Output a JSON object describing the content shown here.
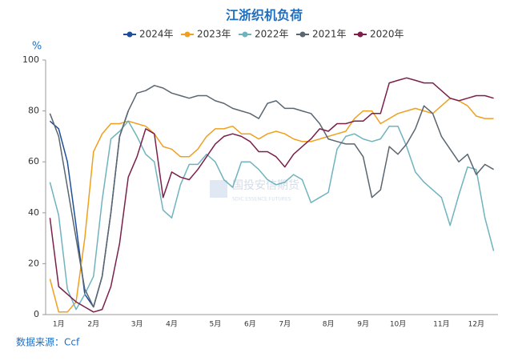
{
  "chart_data": {
    "type": "line",
    "title": "江浙织机负荷",
    "y_unit": "%",
    "source": "数据来源：Ccf",
    "watermark": "国投安信期货",
    "watermark_sub": "SDIC ESSENCE FUTURES",
    "categories": [
      null,
      "1月",
      null,
      null,
      null,
      "2月",
      null,
      null,
      null,
      null,
      "3月",
      null,
      null,
      null,
      "4月",
      null,
      null,
      null,
      null,
      "5月",
      null,
      null,
      null,
      "6月",
      null,
      null,
      null,
      "7月",
      null,
      null,
      null,
      null,
      "8月",
      null,
      null,
      null,
      "9月",
      null,
      null,
      null,
      "10月",
      null,
      null,
      null,
      null,
      "11月",
      null,
      null,
      null,
      "12月",
      null,
      null
    ],
    "ylim": [
      0,
      100
    ],
    "yticks": [
      0,
      20,
      40,
      60,
      80,
      100
    ],
    "grid": false,
    "legend": "top",
    "series": [
      {
        "name": "2024年",
        "color": "#1f4e9c",
        "values": [
          76,
          73,
          60,
          35,
          8,
          3,
          15,
          40,
          70,
          80,
          null,
          null,
          null,
          null,
          null,
          null,
          null,
          null,
          null,
          null,
          null,
          null,
          null,
          null,
          null,
          null,
          null,
          null,
          null,
          null,
          null,
          null,
          null,
          null,
          null,
          null,
          null,
          null,
          null,
          null,
          null,
          null,
          null,
          null,
          null,
          null,
          null,
          null,
          null,
          null,
          null,
          null
        ]
      },
      {
        "name": "2023年",
        "color": "#f0a020",
        "values": [
          14,
          1,
          1,
          5,
          30,
          64,
          71,
          75,
          75,
          76,
          75,
          74,
          71,
          66,
          65,
          62,
          62,
          65,
          70,
          73,
          73,
          74,
          71,
          71,
          69,
          71,
          72,
          71,
          69,
          68,
          68,
          69,
          70,
          71,
          72,
          77,
          80,
          80,
          75,
          77,
          79,
          80,
          81,
          80,
          79,
          82,
          85,
          84,
          82,
          78,
          77,
          77
        ]
      },
      {
        "name": "2022年",
        "color": "#6fb3bf",
        "values": [
          52,
          39,
          10,
          2,
          8,
          15,
          45,
          69,
          72,
          76,
          70,
          63,
          60,
          41,
          38,
          51,
          59,
          59,
          63,
          60,
          53,
          50,
          60,
          60,
          57,
          53,
          51,
          52,
          55,
          53,
          44,
          46,
          48,
          65,
          70,
          71,
          69,
          68,
          69,
          74,
          74,
          66,
          56,
          52,
          49,
          46,
          35,
          47,
          58,
          57,
          38,
          25
        ]
      },
      {
        "name": "2021年",
        "color": "#5a6670",
        "values": [
          79,
          70,
          50,
          30,
          10,
          3,
          15,
          40,
          70,
          80,
          87,
          88,
          90,
          89,
          87,
          86,
          85,
          86,
          86,
          84,
          83,
          81,
          80,
          79,
          77,
          83,
          84,
          81,
          81,
          80,
          79,
          75,
          69,
          68,
          67,
          67,
          62,
          46,
          49,
          66,
          63,
          67,
          73,
          82,
          79,
          70,
          65,
          60,
          63,
          55,
          59,
          57
        ]
      },
      {
        "name": "2020年",
        "color": "#7b1f4b",
        "values": [
          38,
          11,
          8,
          5,
          3,
          1,
          2,
          11,
          28,
          54,
          62,
          73,
          71,
          46,
          56,
          54,
          53,
          57,
          62,
          67,
          70,
          71,
          70,
          68,
          64,
          64,
          62,
          58,
          63,
          66,
          69,
          73,
          72,
          75,
          75,
          76,
          76,
          79,
          79,
          91,
          92,
          93,
          92,
          91,
          91,
          88,
          85,
          84,
          85,
          86,
          86,
          85
        ]
      }
    ]
  }
}
